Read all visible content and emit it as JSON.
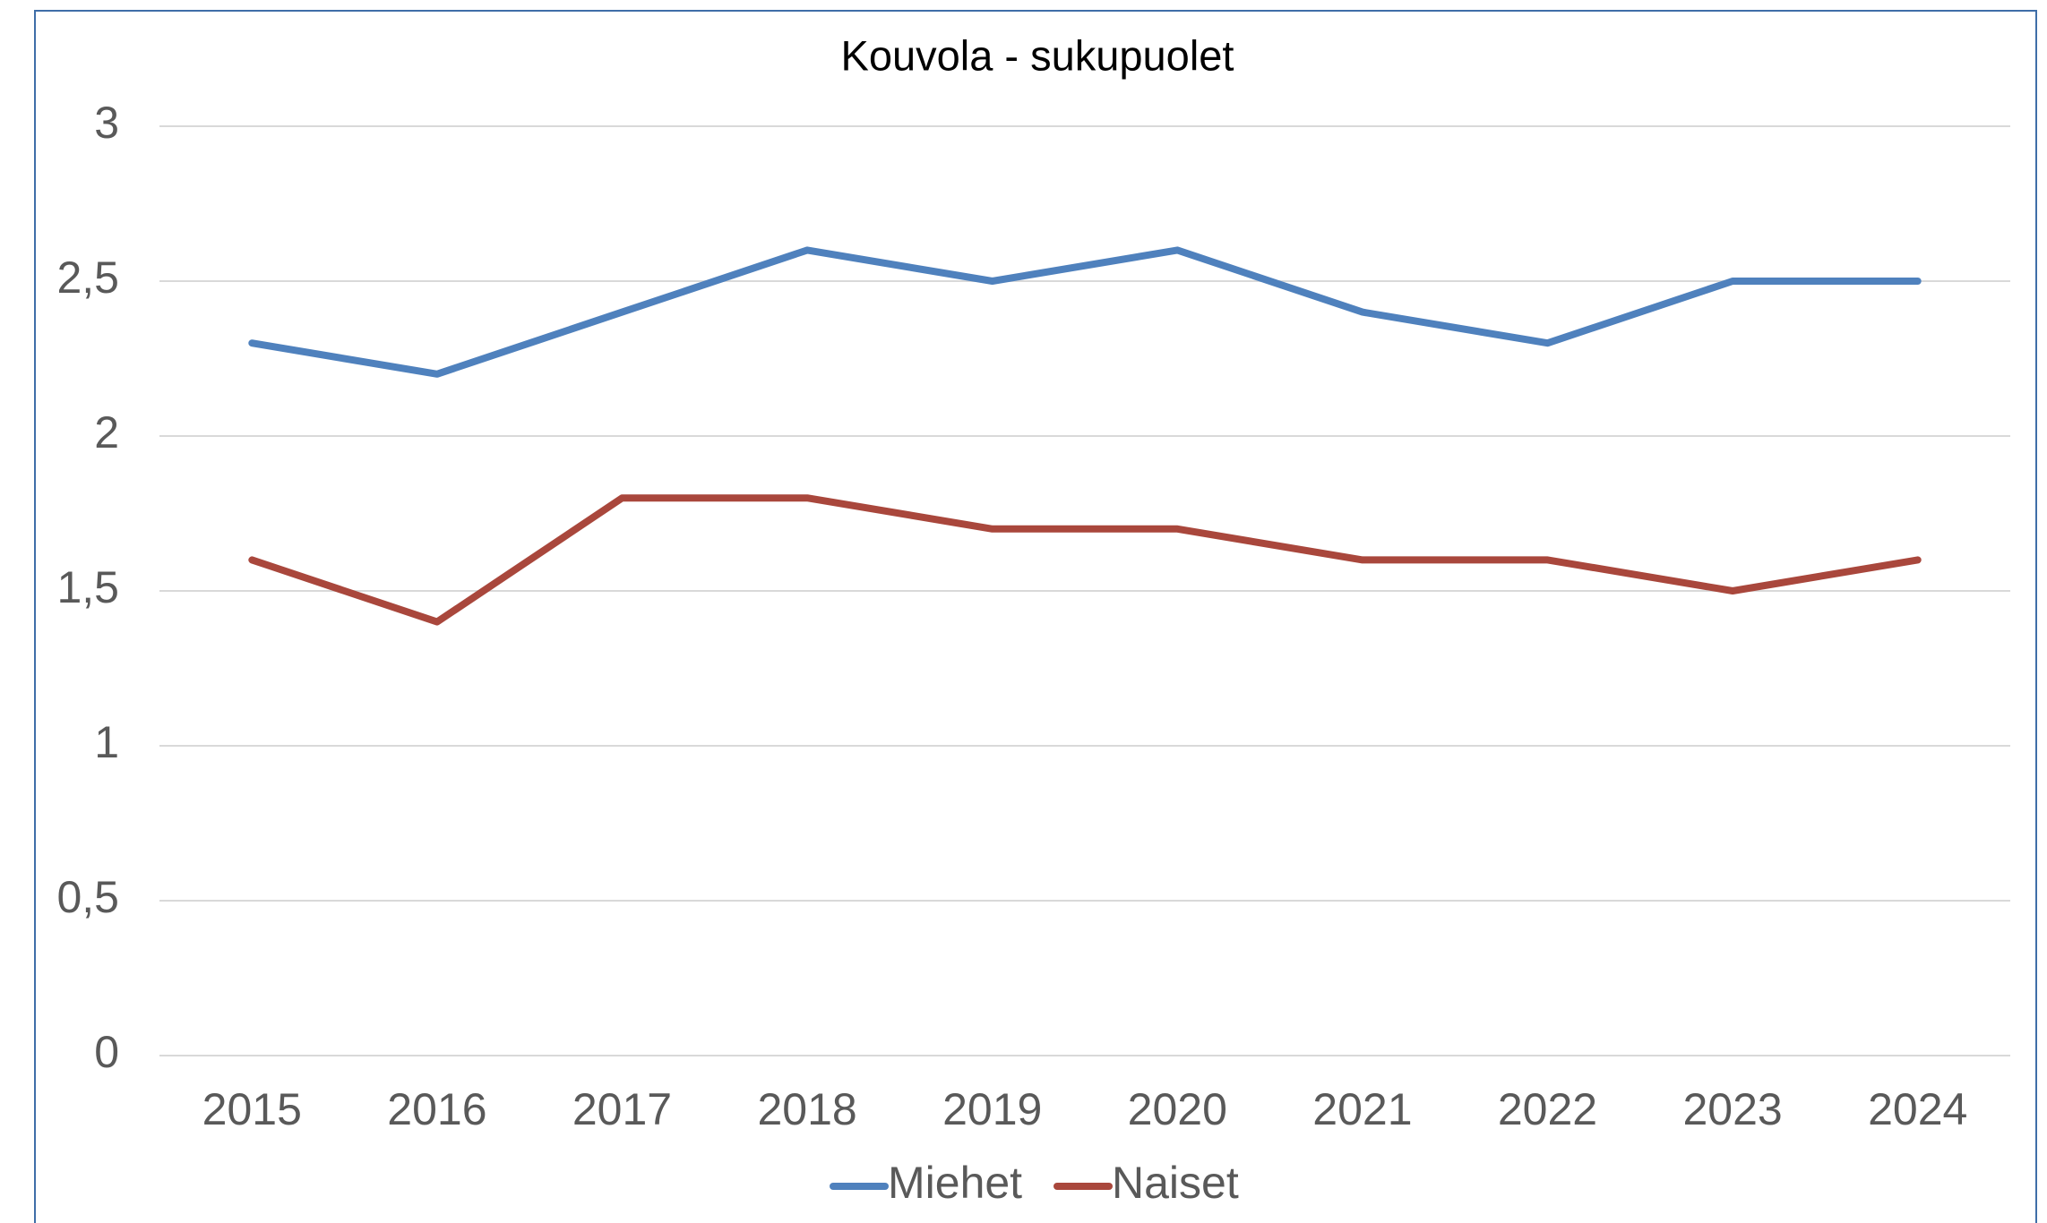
{
  "chart_data": {
    "type": "line",
    "title": "Kouvola - sukupuolet",
    "categories": [
      "2015",
      "2016",
      "2017",
      "2018",
      "2019",
      "2020",
      "2021",
      "2022",
      "2023",
      "2024"
    ],
    "series": [
      {
        "name": "Miehet",
        "color": "#4f81bd",
        "values": [
          2.3,
          2.2,
          2.4,
          2.6,
          2.5,
          2.6,
          2.4,
          2.3,
          2.5,
          2.5
        ]
      },
      {
        "name": "Naiset",
        "color": "#a9473c",
        "values": [
          1.6,
          1.4,
          1.8,
          1.8,
          1.7,
          1.7,
          1.6,
          1.6,
          1.5,
          1.6
        ]
      }
    ],
    "ylim": [
      0,
      3
    ],
    "yticks": [
      0,
      {
        "value": 0.5,
        "label": "0,5"
      },
      1,
      {
        "value": 1.5,
        "label": "1,5"
      },
      2,
      {
        "value": 2.5,
        "label": "2,5"
      },
      3
    ],
    "grid": true,
    "legend": "bottom"
  }
}
